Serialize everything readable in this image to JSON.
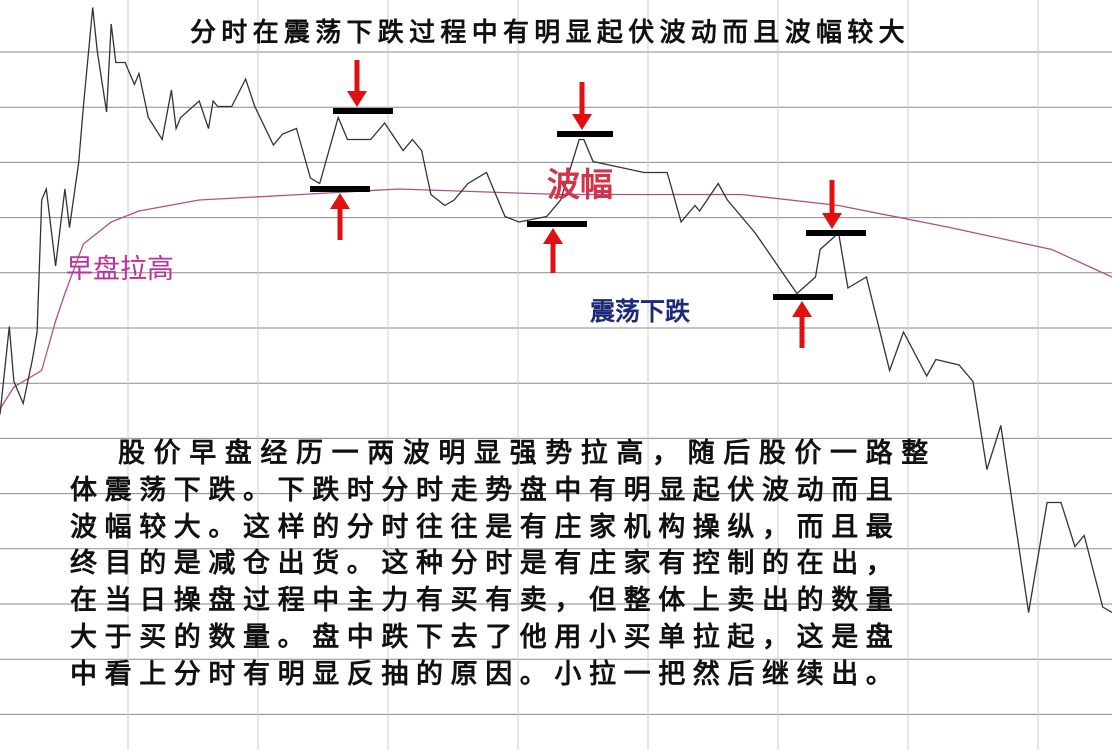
{
  "title": "分时在震荡下跌过程中有明显起伏波动而且波幅较大",
  "annotations": {
    "amplitude": "波幅",
    "morning_rise": "早盘拉高",
    "oscillating_fall": "震荡下跌"
  },
  "paragraph": [
    "股价早盘经历一两波明显强势拉高，随后股价一路整",
    "体震荡下跌。下跌时分时走势盘中有明显起伏波动而且",
    "波幅较大。这样的分时往往是有庄家机构操纵，而且最",
    "终目的是减仓出货。这种分时是有庄家有控制的在出，",
    "在当日操盘过程中主力有买有卖，但整体上卖出的数量",
    "大于买的数量。盘中跌下去了他用小买单拉起，这是盘",
    "中看上分时有明显反抽的原因。小拉一把然后继续出。"
  ],
  "colors": {
    "price_line": "#333333",
    "avg_line": "#b0508a",
    "grid": "#8a8a8a",
    "arrow": "#e01010",
    "marker": "#000000",
    "amplitude_text": "#d0354a",
    "morning_rise_text": "#c12f9a",
    "oscillating_fall_text": "#1c2a78"
  },
  "chart_data": {
    "type": "line",
    "title": "分时在震荡下跌过程中有明显起伏波动而且波幅较大",
    "xlabel": "",
    "ylabel": "",
    "xlim": [
      0,
      240
    ],
    "ylim": [
      0,
      13.6
    ],
    "grid": true,
    "axes_labeled": false,
    "series": [
      {
        "role": "price",
        "points": [
          [
            0,
            6.1
          ],
          [
            2,
            7.7
          ],
          [
            3,
            6.7
          ],
          [
            5,
            6.3
          ],
          [
            7,
            7.1
          ],
          [
            8,
            7.6
          ],
          [
            9,
            10.0
          ],
          [
            10,
            10.2
          ],
          [
            12,
            8.8
          ],
          [
            14,
            10.2
          ],
          [
            15,
            9.5
          ],
          [
            17,
            10.7
          ],
          [
            18,
            11.7
          ],
          [
            20,
            13.5
          ],
          [
            21,
            12.7
          ],
          [
            23,
            11.6
          ],
          [
            24,
            13.2
          ],
          [
            25,
            12.5
          ],
          [
            27,
            12.5
          ],
          [
            29,
            12.1
          ],
          [
            30,
            12.3
          ],
          [
            32,
            11.5
          ],
          [
            35,
            11.1
          ],
          [
            37,
            12.0
          ],
          [
            38,
            11.3
          ],
          [
            39,
            11.5
          ],
          [
            43,
            11.8
          ],
          [
            45,
            11.3
          ],
          [
            46,
            11.8
          ],
          [
            47,
            11.7
          ],
          [
            50,
            11.7
          ],
          [
            53,
            12.2
          ],
          [
            55,
            11.7
          ],
          [
            59,
            11.0
          ],
          [
            61,
            11.2
          ],
          [
            64,
            11.3
          ],
          [
            67,
            10.4
          ],
          [
            69,
            10.3
          ],
          [
            73,
            11.5
          ],
          [
            75,
            11.1
          ],
          [
            78,
            11.1
          ],
          [
            80,
            11.1
          ],
          [
            83,
            11.4
          ],
          [
            87,
            10.9
          ],
          [
            89,
            11.1
          ],
          [
            91,
            10.9
          ],
          [
            93,
            10.1
          ],
          [
            96,
            9.9
          ],
          [
            98,
            10.0
          ],
          [
            101,
            10.3
          ],
          [
            105,
            10.5
          ],
          [
            106,
            10.3
          ],
          [
            109,
            9.7
          ],
          [
            112,
            9.6
          ],
          [
            118,
            9.7
          ],
          [
            121,
            10.0
          ],
          [
            125,
            11.1
          ],
          [
            126,
            11.1
          ],
          [
            128,
            10.7
          ],
          [
            139,
            10.5
          ],
          [
            144,
            10.5
          ],
          [
            147,
            9.6
          ],
          [
            150,
            9.9
          ],
          [
            151,
            9.8
          ],
          [
            155,
            10.3
          ],
          [
            157,
            10.0
          ],
          [
            163,
            9.4
          ],
          [
            172,
            8.3
          ],
          [
            176,
            8.6
          ],
          [
            177,
            9.1
          ],
          [
            181,
            9.4
          ],
          [
            183,
            8.4
          ],
          [
            187,
            8.6
          ],
          [
            192,
            6.9
          ],
          [
            195,
            7.6
          ],
          [
            200,
            6.8
          ],
          [
            202,
            7.1
          ],
          [
            207,
            7.0
          ],
          [
            210,
            6.7
          ],
          [
            213,
            5.1
          ],
          [
            216,
            5.9
          ],
          [
            222,
            2.5
          ],
          [
            226,
            4.5
          ],
          [
            229,
            4.5
          ],
          [
            232,
            3.7
          ],
          [
            234,
            3.9
          ],
          [
            238,
            2.6
          ],
          [
            240,
            2.5
          ]
        ]
      },
      {
        "role": "average",
        "points": [
          [
            0,
            6.2
          ],
          [
            3,
            6.6
          ],
          [
            9,
            6.9
          ],
          [
            12,
            7.8
          ],
          [
            14,
            8.3
          ],
          [
            18,
            9.2
          ],
          [
            24,
            9.6
          ],
          [
            30,
            9.8
          ],
          [
            43,
            10.0
          ],
          [
            65,
            10.1
          ],
          [
            86,
            10.2
          ],
          [
            121,
            10.1
          ],
          [
            142,
            10.1
          ],
          [
            160,
            10.1
          ],
          [
            181,
            9.9
          ],
          [
            205,
            9.5
          ],
          [
            227,
            9.1
          ],
          [
            240,
            8.6
          ]
        ]
      }
    ]
  }
}
